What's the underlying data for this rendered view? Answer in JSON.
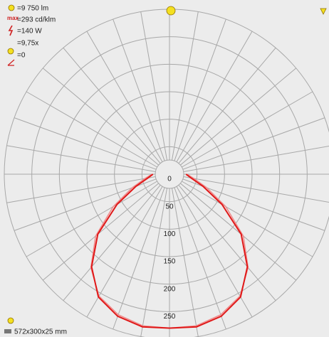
{
  "chart_data": {
    "type": "polar",
    "info": [
      "=9 750 lm",
      "=293 cd/klm",
      "=140 W",
      "=9,75x",
      "=0"
    ],
    "footer": "572x300x25 mm",
    "angles": [
      -90,
      -80,
      -70,
      -60,
      -50,
      -40,
      -30,
      -20,
      -10,
      0,
      10,
      20,
      30,
      40,
      50,
      60,
      70,
      80,
      90
    ],
    "series": [
      {
        "color": "#f08a8a",
        "values": [
          32,
          45,
          72,
          118,
          175,
          222,
          256,
          272,
          280,
          280,
          280,
          272,
          256,
          222,
          175,
          118,
          72,
          45,
          32
        ]
      },
      {
        "color": "#e01818",
        "values": [
          30,
          40,
          65,
          110,
          170,
          220,
          258,
          275,
          282,
          280,
          282,
          275,
          258,
          220,
          170,
          110,
          65,
          40,
          30
        ]
      }
    ],
    "rlim": [
      0,
      300
    ],
    "rticks": [
      0,
      50,
      100,
      150,
      200,
      250
    ],
    "grid": true
  }
}
